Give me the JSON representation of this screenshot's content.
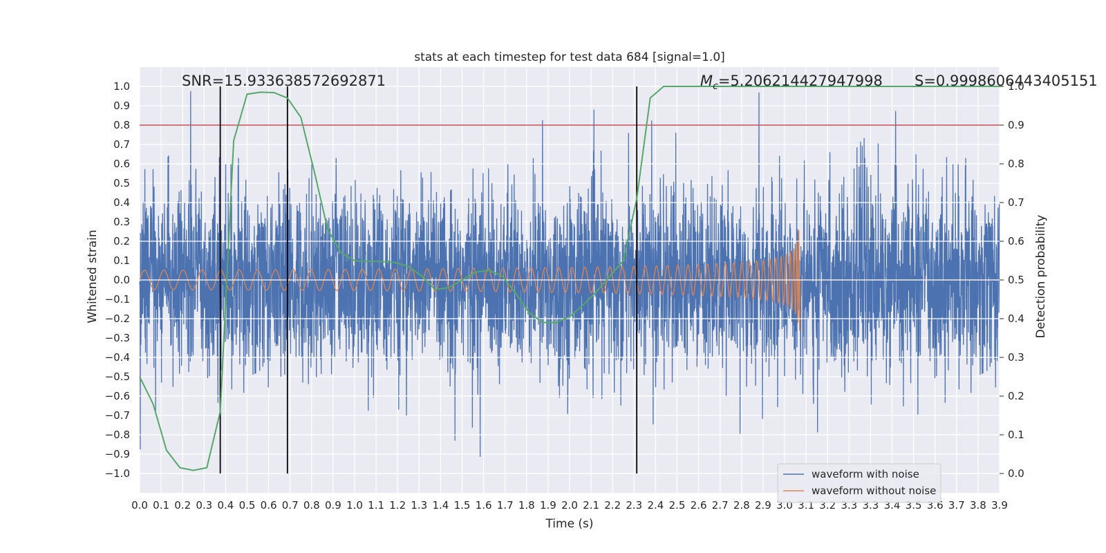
{
  "chart_data": {
    "type": "line",
    "title": "stats at each timestep for test data 684 [signal=1.0]",
    "xlabel": "Time (s)",
    "ylabel": "Whitened strain",
    "ylabel_right": "Detection probability",
    "xlim": [
      0.0,
      4.0
    ],
    "ylim": [
      -1.1,
      1.1
    ],
    "ylim_right": [
      -0.05,
      1.05
    ],
    "x_ticks": [
      "0.0",
      "0.1",
      "0.2",
      "0.3",
      "0.4",
      "0.5",
      "0.6",
      "0.7",
      "0.8",
      "0.9",
      "1.0",
      "1.1",
      "1.2",
      "1.3",
      "1.4",
      "1.5",
      "1.6",
      "1.7",
      "1.8",
      "1.9",
      "2.0",
      "2.1",
      "2.2",
      "2.3",
      "2.4",
      "2.5",
      "2.6",
      "2.7",
      "2.8",
      "2.9",
      "3.0",
      "3.1",
      "3.2",
      "3.3",
      "3.3",
      "3.4",
      "3.5",
      "3.6",
      "3.7",
      "3.8",
      "3.9"
    ],
    "y_ticks": [
      "1.0",
      "0.9",
      "0.8",
      "0.7",
      "0.6",
      "0.5",
      "0.4",
      "0.3",
      "0.2",
      "0.1",
      "0.0",
      "−0.1",
      "−0.2",
      "−0.3",
      "−0.4",
      "−0.5",
      "−0.6",
      "−0.7",
      "−0.8",
      "−0.9",
      "−1.0"
    ],
    "y_right_ticks": [
      "1.0",
      "0.9",
      "0.8",
      "0.7",
      "0.6",
      "0.5",
      "0.4",
      "0.3",
      "0.2",
      "0.1",
      "0.0"
    ],
    "annotations": {
      "snr": "SNR=15.933638572692871",
      "mc_symbol": "M",
      "mc_sub": "c",
      "mc_value": "=5.206214427947998",
      "s": "S=0.9998606443405151"
    },
    "threshold": 0.9,
    "vlines": [
      0.375,
      0.6875,
      2.3125
    ],
    "legend": {
      "placement": "lower-right",
      "entries": [
        "waveform with noise",
        "waveform without noise"
      ]
    },
    "series": [
      {
        "name": "waveform with noise",
        "color": "#4c72b0",
        "note": "noisy whitened strain, amplitude roughly within ±0.7 with peaks near ±1.0"
      },
      {
        "name": "waveform without noise",
        "color": "#dd8452",
        "chirp_start": 0.0,
        "chirp_end": 3.07,
        "amp_start": 0.05,
        "amp_peak": 0.42
      },
      {
        "name": "detection probability",
        "color": "#55a868",
        "axis": "right",
        "x": [
          0.0,
          0.0625,
          0.125,
          0.1875,
          0.25,
          0.3125,
          0.375,
          0.4375,
          0.5,
          0.5625,
          0.625,
          0.6875,
          0.75,
          0.8125,
          0.875,
          0.9375,
          1.0,
          1.0625,
          1.125,
          1.1875,
          1.25,
          1.3125,
          1.375,
          1.4375,
          1.5,
          1.5625,
          1.625,
          1.6875,
          1.75,
          1.8125,
          1.875,
          1.9375,
          2.0,
          2.0625,
          2.125,
          2.1875,
          2.25,
          2.3125,
          2.375,
          2.4375,
          2.5,
          2.5625,
          2.625,
          2.6875,
          2.75,
          2.8125,
          2.875,
          2.9375,
          3.0,
          3.0625,
          3.125,
          3.1875,
          3.25,
          3.3125,
          3.375,
          3.4375,
          3.5,
          3.5625,
          3.625,
          3.6875,
          3.75,
          3.8125,
          3.875,
          3.9375,
          4.0
        ],
        "y": [
          0.25,
          0.18,
          0.06,
          0.015,
          0.008,
          0.015,
          0.16,
          0.86,
          0.98,
          0.985,
          0.984,
          0.97,
          0.92,
          0.78,
          0.63,
          0.57,
          0.55,
          0.548,
          0.548,
          0.545,
          0.535,
          0.51,
          0.475,
          0.48,
          0.5,
          0.52,
          0.525,
          0.51,
          0.465,
          0.415,
          0.39,
          0.39,
          0.405,
          0.435,
          0.47,
          0.51,
          0.55,
          0.71,
          0.97,
          1.0,
          1.0,
          1.0,
          1.0,
          1.0,
          1.0,
          1.0,
          1.0,
          1.0,
          1.0,
          1.0,
          1.0,
          1.0,
          1.0,
          1.0,
          1.0,
          1.0,
          1.0,
          1.0,
          1.0,
          1.0,
          1.0,
          1.0,
          1.0,
          1.0,
          1.0
        ]
      }
    ],
    "colors": {
      "background": "#eaeaf2",
      "grid": "#ffffff",
      "threshold": "#c44e52",
      "vline": "#000000"
    }
  }
}
